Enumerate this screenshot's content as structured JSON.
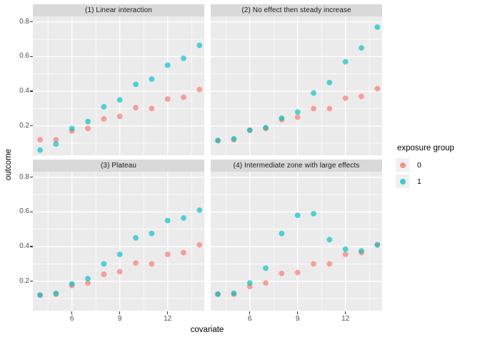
{
  "figure": {
    "y_axis_title": "outcome",
    "x_axis_title": "covariate"
  },
  "legend": {
    "title": "exposure group",
    "entries": [
      {
        "label": "0",
        "color": "#F8766D"
      },
      {
        "label": "1",
        "color": "#00BFC4"
      }
    ]
  },
  "colors": {
    "panel_bg": "#EBEBEB",
    "strip_bg": "#D9D9D9",
    "grid": "#FFFFFF",
    "legend_key_bg": "#F0F0F0",
    "tick_text": "#4D4D4D"
  },
  "chart_data": {
    "type": "scatter",
    "xlabel": "covariate",
    "ylabel": "outcome",
    "legend_title": "exposure group",
    "legend_position": "right",
    "grid": "on",
    "x": [
      4,
      5,
      6,
      7,
      8,
      9,
      10,
      11,
      12,
      13,
      14
    ],
    "x_ticks": [
      6,
      9,
      12
    ],
    "y_ticks": [
      0.2,
      0.4,
      0.6,
      0.8
    ],
    "x_minor": [
      4.5,
      7.5,
      10.5,
      13.5
    ],
    "y_minor": [
      0.1,
      0.3,
      0.5,
      0.7
    ],
    "x_range": [
      3.55,
      14.3
    ],
    "y_range": [
      0.03,
      0.832
    ],
    "point_alpha": 0.66,
    "facets": [
      {
        "title": "(1) Linear interaction",
        "series": [
          {
            "name": "0",
            "values": [
              0.12,
              0.12,
              0.17,
              0.185,
              0.24,
              0.255,
              0.305,
              0.3,
              0.355,
              0.365,
              0.41
            ]
          },
          {
            "name": "1",
            "values": [
              0.06,
              0.095,
              0.185,
              0.225,
              0.31,
              0.35,
              0.44,
              0.47,
              0.55,
              0.59,
              0.665
            ]
          }
        ]
      },
      {
        "title": "(2) No effect then steady increase",
        "series": [
          {
            "name": "0",
            "values": [
              0.115,
              0.12,
              0.175,
              0.185,
              0.235,
              0.25,
              0.3,
              0.3,
              0.36,
              0.37,
              0.415
            ]
          },
          {
            "name": "1",
            "values": [
              0.115,
              0.125,
              0.175,
              0.19,
              0.245,
              0.28,
              0.39,
              0.45,
              0.57,
              0.65,
              0.77
            ]
          }
        ]
      },
      {
        "title": "(3) Plateau",
        "series": [
          {
            "name": "0",
            "values": [
              0.12,
              0.125,
              0.175,
              0.19,
              0.24,
              0.255,
              0.305,
              0.3,
              0.355,
              0.365,
              0.41
            ]
          },
          {
            "name": "1",
            "values": [
              0.12,
              0.13,
              0.185,
              0.215,
              0.3,
              0.355,
              0.45,
              0.475,
              0.55,
              0.565,
              0.61
            ]
          }
        ]
      },
      {
        "title": "(4) Intermediate zone with large effects",
        "series": [
          {
            "name": "0",
            "values": [
              0.125,
              0.125,
              0.17,
              0.19,
              0.245,
              0.25,
              0.3,
              0.3,
              0.355,
              0.365,
              0.41
            ]
          },
          {
            "name": "1",
            "values": [
              0.125,
              0.13,
              0.19,
              0.275,
              0.475,
              0.58,
              0.59,
              0.44,
              0.385,
              0.375,
              0.41
            ]
          }
        ]
      }
    ]
  }
}
